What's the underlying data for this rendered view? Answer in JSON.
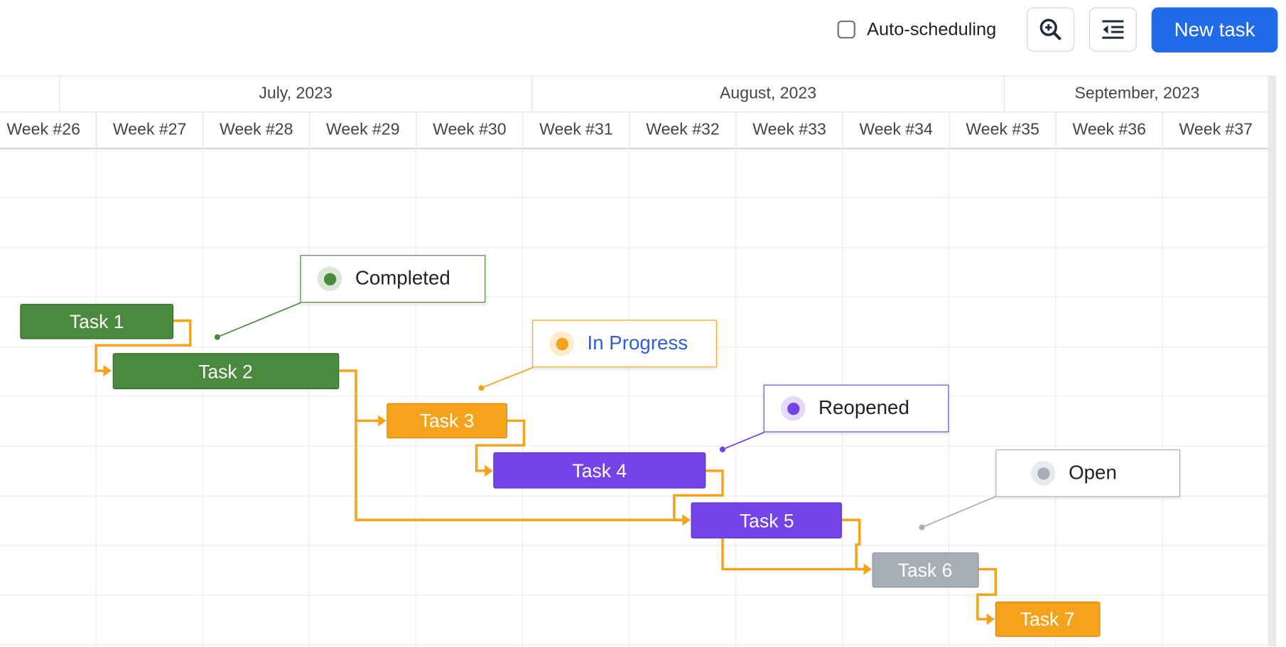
{
  "toolbar": {
    "auto_scheduling_label": "Auto-scheduling",
    "auto_scheduling_checked": false,
    "zoom_icon": "zoom-in-icon",
    "indent_icon": "outdent-icon",
    "new_task_label": "New task"
  },
  "scale": {
    "months": [
      "July, 2023",
      "August, 2023",
      "September, 2023"
    ],
    "weeks": [
      "Week #26",
      "Week #27",
      "Week #28",
      "Week #29",
      "Week #30",
      "Week #31",
      "Week #32",
      "Week #33",
      "Week #34",
      "Week #35",
      "Week #36",
      "Week #37"
    ]
  },
  "tasks": [
    {
      "label": "Task 1",
      "status": "completed"
    },
    {
      "label": "Task 2",
      "status": "completed"
    },
    {
      "label": "Task 3",
      "status": "in-progress"
    },
    {
      "label": "Task 4",
      "status": "reopened"
    },
    {
      "label": "Task 5",
      "status": "reopened"
    },
    {
      "label": "Task 6",
      "status": "open"
    },
    {
      "label": "Task 7",
      "status": "in-progress"
    }
  ],
  "statuses": {
    "completed": {
      "label": "Completed",
      "color": "#4a8a3e",
      "text_color": "#222222"
    },
    "in_progress": {
      "label": "In Progress",
      "color": "#f5a31a",
      "text_color": "#2f5fd0"
    },
    "reopened": {
      "label": "Reopened",
      "color": "#7444e8",
      "text_color": "#222222"
    },
    "open": {
      "label": "Open",
      "color": "#a7aeb7",
      "text_color": "#222222"
    }
  },
  "colors": {
    "link": "#f5a31a",
    "accent": "#1f6bea"
  }
}
